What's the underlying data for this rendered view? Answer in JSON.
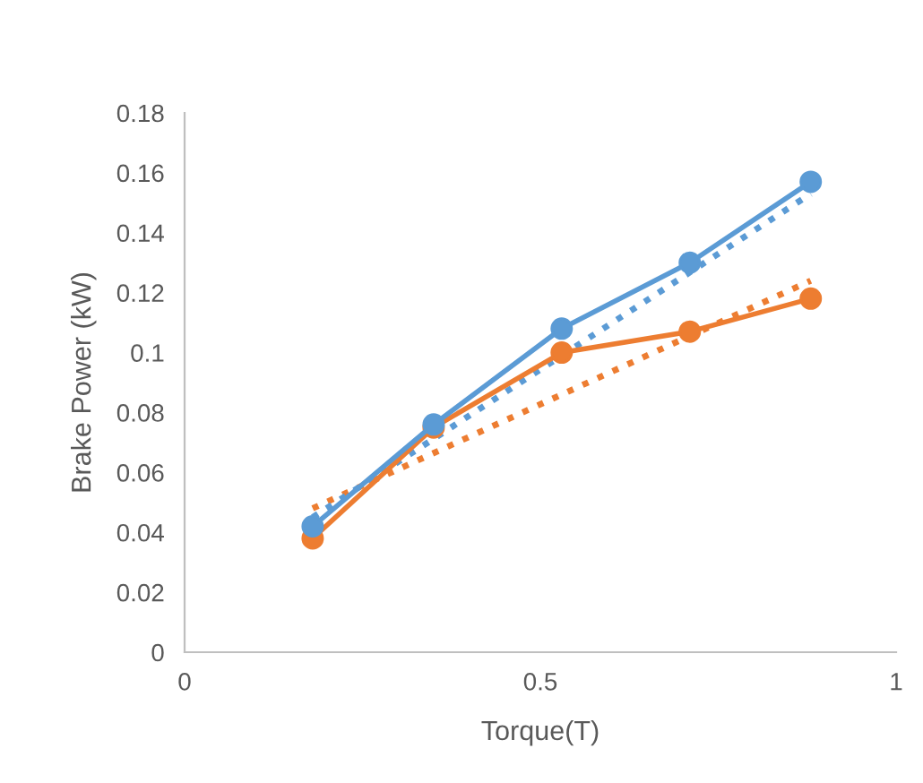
{
  "chart_data": {
    "type": "line",
    "xlabel": "Torque(T)",
    "ylabel": "Brake Power (kW)",
    "xlim": [
      0,
      1
    ],
    "xticks": [
      0,
      0.5,
      1
    ],
    "ylim": [
      0,
      0.18
    ],
    "yticks": [
      0,
      0.02,
      0.04,
      0.06,
      0.08,
      0.1,
      0.12,
      0.14,
      0.16,
      0.18
    ],
    "grid": false,
    "series": [
      {
        "color": "#5b9bd5",
        "x": [
          0.18,
          0.35,
          0.53,
          0.71,
          0.88
        ],
        "values": [
          0.042,
          0.076,
          0.108,
          0.13,
          0.157
        ],
        "marker": "circle",
        "line_style": "solid"
      },
      {
        "color": "#ed7d31",
        "x": [
          0.18,
          0.35,
          0.53,
          0.71,
          0.88
        ],
        "values": [
          0.038,
          0.075,
          0.1,
          0.107,
          0.118
        ],
        "marker": "circle",
        "line_style": "solid"
      },
      {
        "color": "#5b9bd5",
        "x": [
          0.18,
          0.88
        ],
        "values": [
          0.045,
          0.153
        ],
        "marker": "none",
        "line_style": "dotted"
      },
      {
        "color": "#ed7d31",
        "x": [
          0.18,
          0.88
        ],
        "values": [
          0.048,
          0.124
        ],
        "marker": "none",
        "line_style": "dotted"
      }
    ]
  }
}
